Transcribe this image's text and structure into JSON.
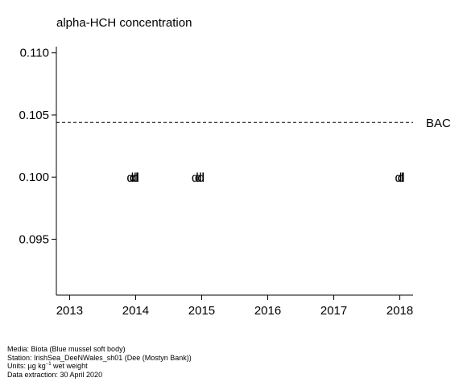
{
  "chart_data": {
    "type": "scatter",
    "title": "alpha-HCH concentration",
    "xlabel": "",
    "ylabel": "",
    "xlim": [
      2012.8,
      2018.2
    ],
    "ylim": [
      0.0905,
      0.1105
    ],
    "x_ticks": [
      "2013",
      "2014",
      "2015",
      "2016",
      "2017",
      "2018"
    ],
    "y_ticks": [
      "0.095",
      "0.100",
      "0.105",
      "0.110"
    ],
    "reference_lines": [
      {
        "label": "BAC",
        "value": 0.1044,
        "style": "dashed"
      }
    ],
    "points": [
      {
        "x": 2013.92,
        "y": 0.1,
        "marker": "d"
      },
      {
        "x": 2013.96,
        "y": 0.1,
        "marker": "d"
      },
      {
        "x": 2014.0,
        "y": 0.1,
        "marker": "d"
      },
      {
        "x": 2014.02,
        "y": 0.1,
        "marker": "l"
      },
      {
        "x": 2014.9,
        "y": 0.1,
        "marker": "d"
      },
      {
        "x": 2014.95,
        "y": 0.1,
        "marker": "d"
      },
      {
        "x": 2014.99,
        "y": 0.1,
        "marker": "d"
      },
      {
        "x": 2015.02,
        "y": 0.1,
        "marker": "l"
      },
      {
        "x": 2017.98,
        "y": 0.1,
        "marker": "d"
      },
      {
        "x": 2018.02,
        "y": 0.1,
        "marker": "d"
      },
      {
        "x": 2018.04,
        "y": 0.1,
        "marker": "l"
      }
    ],
    "grid": false,
    "legend": "none"
  },
  "footer": {
    "media": "Media: Biota (Blue mussel soft body)",
    "station": "Station: IrishSea_DeeNWales_sh01 (Dee (Mostyn Bank))",
    "units_prefix": "Units:  µg kg",
    "units_exp": "−1",
    "units_suffix": " wet weight",
    "extraction": "Data extraction: 30 April 2020"
  }
}
